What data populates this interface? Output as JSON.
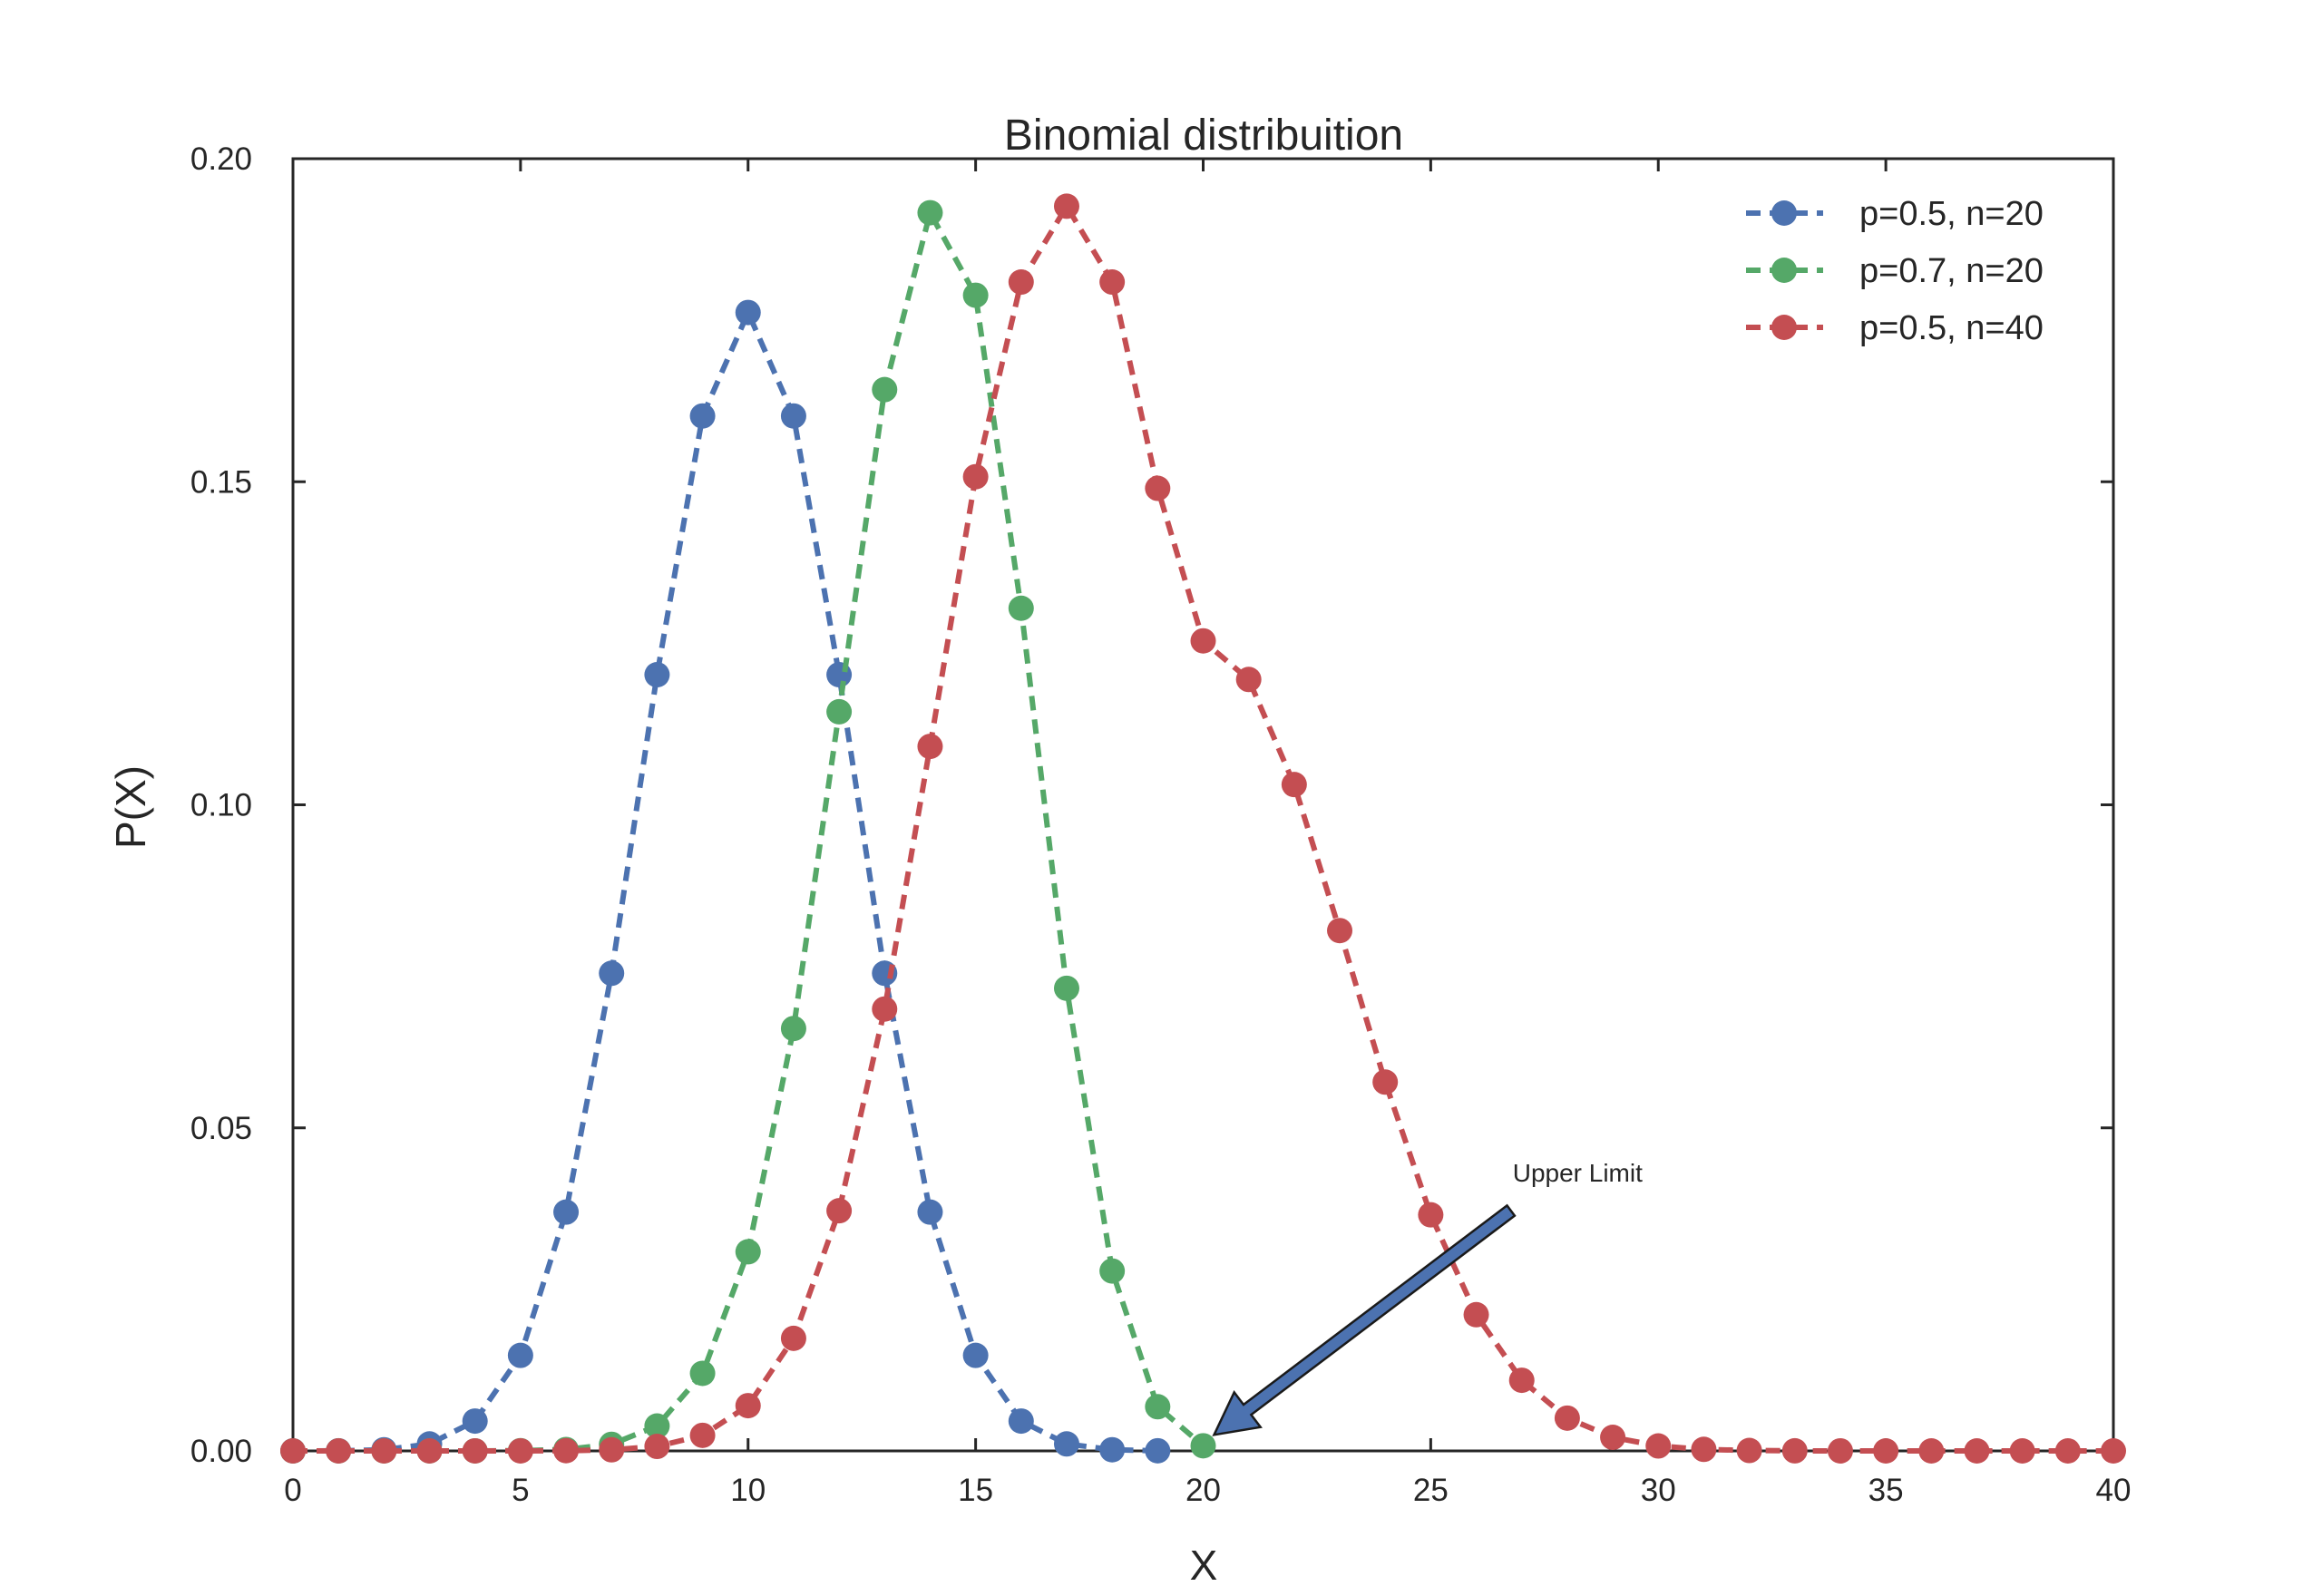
{
  "chart_data": {
    "type": "line",
    "title": "Binomial distribuition",
    "xlabel": "X",
    "ylabel": "P(X)",
    "xlim": [
      0,
      40
    ],
    "ylim": [
      0,
      0.2
    ],
    "xticks": [
      0,
      5,
      10,
      15,
      20,
      25,
      30,
      35,
      40
    ],
    "yticks": [
      0.0,
      0.05,
      0.1,
      0.15,
      0.2
    ],
    "xtick_labels": [
      "0",
      "5",
      "10",
      "15",
      "20",
      "25",
      "30",
      "35",
      "40"
    ],
    "ytick_labels": [
      "0.00",
      "0.05",
      "0.10",
      "0.15",
      "0.20"
    ],
    "grid": false,
    "legend_position": "top-right",
    "line_style": "dashed",
    "marker": "circle",
    "series": [
      {
        "name": "p=0.5, n=20",
        "color": "#4c72b0",
        "x": [
          0,
          1,
          2,
          3,
          4,
          5,
          6,
          7,
          8,
          9,
          10,
          11,
          12,
          13,
          14,
          15,
          16,
          17,
          18,
          19
        ],
        "values": [
          1e-06,
          1.9e-05,
          0.000181,
          0.001087,
          0.004621,
          0.014786,
          0.036964,
          0.073929,
          0.120134,
          0.160179,
          0.176197,
          0.160179,
          0.120134,
          0.073929,
          0.036964,
          0.014786,
          0.004621,
          0.001087,
          0.000181,
          1.9e-05
        ]
      },
      {
        "name": "p=0.7, n=20",
        "color": "#55a868",
        "x": [
          0,
          1,
          2,
          3,
          4,
          5,
          6,
          7,
          8,
          9,
          10,
          11,
          12,
          13,
          14,
          15,
          16,
          17,
          18,
          19,
          20
        ],
        "values": [
          0.0,
          0.0,
          0.0,
          0.0,
          6e-06,
          3.7e-05,
          0.000218,
          0.001018,
          0.003859,
          0.012007,
          0.030817,
          0.06537,
          0.114397,
          0.164262,
          0.191639,
          0.178863,
          0.130421,
          0.071604,
          0.027846,
          0.006839,
          0.000798
        ]
      },
      {
        "name": "p=0.5, n=40",
        "color": "#c44e52",
        "x": [
          0,
          1,
          2,
          3,
          4,
          5,
          6,
          7,
          8,
          9,
          10,
          11,
          12,
          13,
          14,
          15,
          16,
          17,
          18,
          19,
          20,
          21,
          22,
          23,
          24,
          25,
          26,
          27,
          28,
          29,
          30,
          31,
          32,
          33,
          34,
          35,
          36,
          37,
          38,
          39,
          40
        ],
        "values": [
          0.0,
          0.0,
          0.0,
          0.0,
          1e-06,
          6e-06,
          3.5e-05,
          0.000171,
          0.000698,
          0.002405,
          0.007005,
          0.017421,
          0.03717,
          0.068389,
          0.109036,
          0.150773,
          0.180909,
          0.192648,
          0.180909,
          0.148978,
          0.125371,
          0.119401,
          0.103134,
          0.080533,
          0.057087,
          0.036537,
          0.021081,
          0.010932,
          0.005077,
          0.002102,
          0.000768,
          0.000245,
          6.7e-05,
          1.5e-05,
          3e-06,
          0.0,
          0.0,
          0.0,
          0.0,
          0.0,
          0.0
        ]
      }
    ],
    "annotations": [
      {
        "text": "Upper Limit",
        "xy": [
          20,
          0.0008
        ],
        "xytext": [
          27,
          0.04
        ]
      }
    ]
  }
}
